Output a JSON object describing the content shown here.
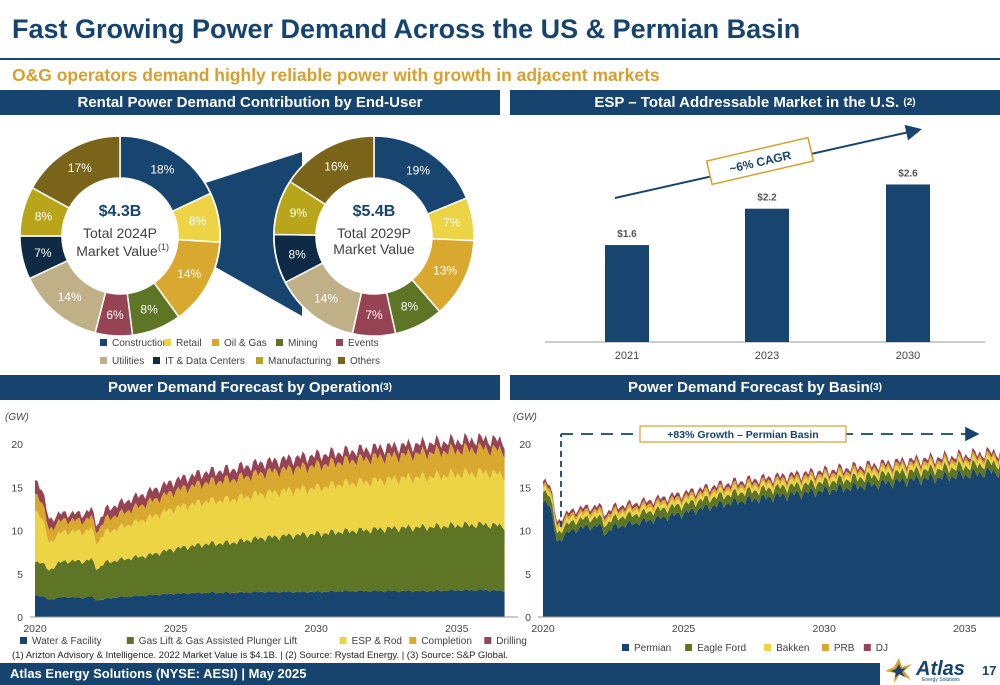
{
  "title": "Fast Growing Power Demand Across the US & Permian Basin",
  "subtitle": "O&G operators demand highly reliable power with growth in adjacent markets",
  "panels": {
    "rental": "Rental Power Demand Contribution by End-User",
    "esp": "ESP – Total Addressable Market in the U.S.",
    "esp_sup": "(2)",
    "operation": "Power Demand Forecast by Operation",
    "operation_sup": "(3)",
    "basin": "Power Demand Forecast by Basin",
    "basin_sup": "(3)"
  },
  "donuts": {
    "left": {
      "value": "$4.3B",
      "line1": "Total 2024P",
      "line2": "Market Value",
      "sup": "(1)"
    },
    "right": {
      "value": "$5.4B",
      "line1": "Total 2029P",
      "line2": "Market Value",
      "sup": ""
    }
  },
  "footnote": "(1) Arizton Advisory & Intelligence. 2022 Market Value is $4.1B. | (2) Source: Rystad Energy. | (3) Source: S&P Global.",
  "footer": "Atlas Energy Solutions (NYSE: AESI)  | May 2025",
  "logo": {
    "word": "Atlas",
    "sub": "Energy Solutions"
  },
  "page_number": "17",
  "colors": {
    "navy": "#16446E",
    "gold": "#D7A02E",
    "construction": "#17456F",
    "retail": "#ECD445",
    "oilgas": "#D9A92F",
    "mining": "#5E7526",
    "events": "#964454",
    "utilities": "#C0B087",
    "it": "#0E2A45",
    "manufacturing": "#E3AC2A",
    "others": "#7A641A"
  },
  "chart_data": [
    {
      "type": "pie",
      "title": "Total 2024P Market Value",
      "legend": [
        "Construction",
        "Retail",
        "Oil & Gas",
        "Mining",
        "Events",
        "Utilities",
        "IT & Data Centers",
        "Manufacturing",
        "Others"
      ],
      "slices": [
        {
          "name": "Construction",
          "value": 18,
          "label": "18%",
          "color": "#17456F",
          "text": "#ffffff"
        },
        {
          "name": "Retail",
          "value": 8,
          "label": "8%",
          "color": "#ECD445",
          "text": "#ffffff"
        },
        {
          "name": "Oil & Gas",
          "value": 14,
          "label": "14%",
          "color": "#D9A92F",
          "text": "#ffffff"
        },
        {
          "name": "Mining",
          "value": 8,
          "label": "8%",
          "color": "#5E7526",
          "text": "#ffffff"
        },
        {
          "name": "Events",
          "value": 6,
          "label": "6%",
          "color": "#964454",
          "text": "#ffffff"
        },
        {
          "name": "Utilities",
          "value": 14,
          "label": "14%",
          "color": "#C0B087",
          "text": "#ffffff"
        },
        {
          "name": "IT & Data Centers",
          "value": 7,
          "label": "7%",
          "color": "#0E2A45",
          "text": "#ffffff"
        },
        {
          "name": "Manufacturing",
          "value": 8,
          "label": "8%",
          "color": "#B8A519",
          "text": "#ffffff"
        },
        {
          "name": "Others",
          "value": 17,
          "label": "17%",
          "color": "#7A641A",
          "text": "#ffffff"
        }
      ]
    },
    {
      "type": "pie",
      "title": "Total 2029P Market Value",
      "slices": [
        {
          "name": "Construction",
          "value": 19,
          "label": "19%",
          "color": "#17456F",
          "text": "#ffffff"
        },
        {
          "name": "Retail",
          "value": 7,
          "label": "7%",
          "color": "#ECD445",
          "text": "#ffffff"
        },
        {
          "name": "Oil & Gas",
          "value": 13,
          "label": "13%",
          "color": "#D9A92F",
          "text": "#ffffff"
        },
        {
          "name": "Mining",
          "value": 8,
          "label": "8%",
          "color": "#5E7526",
          "text": "#ffffff"
        },
        {
          "name": "Events",
          "value": 7,
          "label": "7%",
          "color": "#964454",
          "text": "#ffffff"
        },
        {
          "name": "Utilities",
          "value": 14,
          "label": "14%",
          "color": "#C0B087",
          "text": "#ffffff"
        },
        {
          "name": "IT & Data Centers",
          "value": 8,
          "label": "8%",
          "color": "#0E2A45",
          "text": "#ffffff"
        },
        {
          "name": "Manufacturing",
          "value": 9,
          "label": "9%",
          "color": "#B8A519",
          "text": "#ffffff"
        },
        {
          "name": "Others",
          "value": 16,
          "label": "16%",
          "color": "#7A641A",
          "text": "#ffffff"
        }
      ]
    },
    {
      "type": "bar",
      "title": "ESP – Total Addressable Market in the U.S.",
      "categories": [
        "2021",
        "2023",
        "2030"
      ],
      "values": [
        1.6,
        2.2,
        2.6
      ],
      "labels": [
        "$1.6",
        "$2.2",
        "$2.6"
      ],
      "ylim": [
        0,
        3.4
      ],
      "annotation": "~6% CAGR",
      "color": "#17456F"
    },
    {
      "type": "area",
      "title": "Power Demand Forecast by Operation",
      "ylabel": "(GW)",
      "ylim": [
        0,
        20
      ],
      "yticks": [
        0,
        5,
        10,
        15,
        20
      ],
      "xlim": [
        2020,
        2037
      ],
      "xticks": [
        2020,
        2025,
        2030,
        2035
      ],
      "x_knots": [
        2020.0,
        2020.2,
        2020.5,
        2020.8,
        2021.0,
        2021.3,
        2021.7,
        2022.0,
        2022.2,
        2022.5,
        2023.0,
        2024.0,
        2025.0,
        2026.0,
        2027.0,
        2028.0,
        2029.0,
        2030.0,
        2031.0,
        2032.0,
        2033.0,
        2034.0,
        2035.0,
        2036.0,
        2036.7
      ],
      "series": [
        {
          "name": "Water & Facility",
          "color": "#17456F",
          "values": [
            2.5,
            2.5,
            2.0,
            2.2,
            2.3,
            2.3,
            2.2,
            2.4,
            1.9,
            2.1,
            2.3,
            2.5,
            2.7,
            2.8,
            2.8,
            2.9,
            2.9,
            2.9,
            3.0,
            3.0,
            3.0,
            3.0,
            3.1,
            3.1,
            3.0
          ]
        },
        {
          "name": "Gas Lift & Gas Assisted Plunger Lift",
          "color": "#5E7526",
          "values": [
            3.8,
            4.0,
            3.3,
            4.0,
            4.1,
            4.2,
            4.2,
            4.3,
            3.6,
            4.2,
            4.3,
            4.6,
            5.2,
            5.6,
            5.8,
            6.2,
            6.5,
            6.7,
            6.9,
            7.1,
            7.3,
            7.4,
            7.5,
            7.6,
            7.5
          ]
        },
        {
          "name": "ESP & Rod",
          "color": "#ECD445",
          "values": [
            5.9,
            5.5,
            3.2,
            3.3,
            3.4,
            3.4,
            3.4,
            3.5,
            3.0,
            3.5,
            3.7,
            4.3,
            4.7,
            4.9,
            5.0,
            5.1,
            5.2,
            5.3,
            5.5,
            5.6,
            5.7,
            5.8,
            5.9,
            6.0,
            5.9
          ]
        },
        {
          "name": "Completion",
          "color": "#D9A92F",
          "values": [
            2.0,
            1.9,
            1.5,
            1.4,
            1.4,
            1.3,
            1.3,
            1.4,
            1.3,
            1.5,
            1.6,
            1.8,
            2.0,
            2.2,
            2.3,
            2.4,
            2.5,
            2.6,
            2.6,
            2.7,
            2.7,
            2.8,
            2.8,
            2.8,
            2.8
          ]
        },
        {
          "name": "Drilling",
          "color": "#964454",
          "values": [
            1.6,
            1.5,
            1.2,
            0.9,
            0.8,
            0.8,
            0.8,
            0.9,
            0.8,
            1.1,
            1.2,
            1.2,
            1.2,
            1.2,
            1.2,
            1.2,
            1.2,
            1.2,
            1.1,
            1.1,
            1.1,
            1.1,
            1.1,
            1.1,
            1.1
          ]
        }
      ]
    },
    {
      "type": "area",
      "title": "Power Demand Forecast by Basin",
      "ylabel": "(GW)",
      "ylim": [
        0,
        20
      ],
      "yticks": [
        0,
        5,
        10,
        15,
        20
      ],
      "xlim": [
        2020,
        2037
      ],
      "xticks": [
        2020,
        2025,
        2030,
        2035
      ],
      "annotation": "+83% Growth – Permian Basin",
      "x_knots": [
        2020.0,
        2020.2,
        2020.5,
        2020.8,
        2021.0,
        2021.3,
        2021.7,
        2022.0,
        2022.2,
        2022.5,
        2023.0,
        2024.0,
        2025.0,
        2026.0,
        2027.0,
        2028.0,
        2029.0,
        2030.0,
        2031.0,
        2032.0,
        2033.0,
        2034.0,
        2035.0,
        2036.0,
        2036.7
      ],
      "series": [
        {
          "name": "Permian",
          "color": "#17456F",
          "values": [
            13.2,
            13.6,
            8.6,
            9.6,
            9.9,
            10.3,
            10.4,
            10.6,
            9.6,
            10.4,
            10.7,
            11.3,
            12.0,
            12.8,
            13.4,
            13.8,
            14.2,
            14.6,
            15.0,
            15.4,
            15.8,
            16.1,
            16.4,
            16.8,
            16.7
          ]
        },
        {
          "name": "Eagle Ford",
          "color": "#5E7526",
          "values": [
            1.2,
            1.2,
            1.0,
            1.0,
            1.0,
            1.0,
            1.0,
            1.0,
            1.0,
            1.0,
            1.0,
            1.0,
            1.0,
            1.0,
            1.0,
            1.0,
            1.0,
            1.0,
            1.0,
            1.0,
            1.0,
            1.0,
            1.0,
            1.0,
            1.0
          ]
        },
        {
          "name": "Bakken",
          "color": "#ECD445",
          "values": [
            0.5,
            0.5,
            0.5,
            0.5,
            0.5,
            0.5,
            0.5,
            0.5,
            0.5,
            0.5,
            0.5,
            0.5,
            0.5,
            0.5,
            0.5,
            0.5,
            0.5,
            0.5,
            0.5,
            0.5,
            0.5,
            0.5,
            0.5,
            0.5,
            0.5
          ]
        },
        {
          "name": "PRB",
          "color": "#D9A92F",
          "values": [
            0.4,
            0.4,
            0.4,
            0.4,
            0.4,
            0.4,
            0.4,
            0.4,
            0.4,
            0.4,
            0.4,
            0.4,
            0.4,
            0.4,
            0.4,
            0.4,
            0.4,
            0.4,
            0.4,
            0.4,
            0.4,
            0.4,
            0.4,
            0.4,
            0.4
          ]
        },
        {
          "name": "DJ",
          "color": "#964454",
          "values": [
            0.4,
            0.4,
            0.4,
            0.4,
            0.4,
            0.4,
            0.4,
            0.4,
            0.4,
            0.4,
            0.4,
            0.4,
            0.4,
            0.4,
            0.4,
            0.4,
            0.4,
            0.4,
            0.4,
            0.4,
            0.4,
            0.4,
            0.4,
            0.4,
            0.4
          ]
        }
      ]
    }
  ]
}
